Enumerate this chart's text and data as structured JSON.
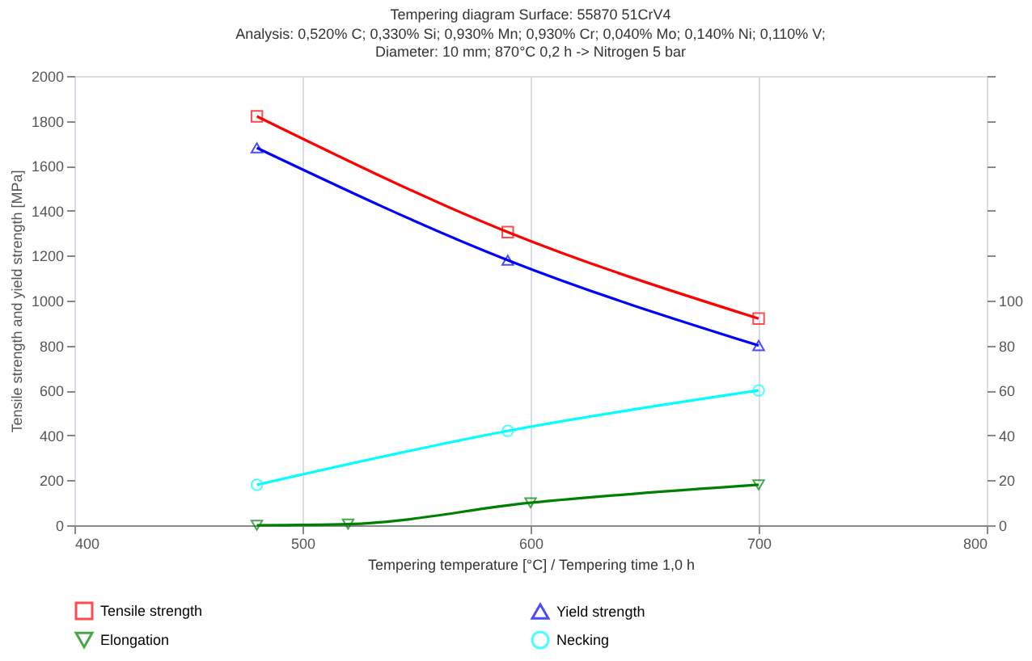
{
  "chart_data": {
    "type": "line",
    "title": "Tempering diagram Surface: 55870 51CrV4",
    "subtitle": "Analysis: 0,520% C; 0,330% Si; 0,930% Mn; 0,930% Cr; 0,040% Mo; 0,140% Ni; 0,110% V;\nDiameter: 10 mm; 870°C 0,2 h -> Nitrogen 5 bar",
    "xlabel": "Tempering temperature [°C] / Tempering time  1,0 h",
    "ylabel": "Tensile strength and yield strength [MPa]",
    "xlim": [
      400,
      800
    ],
    "xticks": [
      400,
      500,
      600,
      700,
      800
    ],
    "ylim": [
      0,
      2000
    ],
    "yticks": [
      0,
      200,
      400,
      600,
      800,
      1000,
      1200,
      1400,
      1600,
      1800,
      2000
    ],
    "y2lim": [
      0,
      200
    ],
    "y2ticks": [
      0,
      20,
      40,
      60,
      80,
      100,
      {
        "value": 120,
        "label": null
      },
      {
        "value": 140,
        "label": null
      },
      {
        "value": 160,
        "label": null
      },
      {
        "value": 180,
        "label": null
      },
      {
        "value": 200,
        "label": null
      }
    ],
    "grid": "x",
    "legend": "bottom",
    "line_style": "solid",
    "series": [
      {
        "name": "Tensile strength",
        "color": "#ff0000",
        "marker": "square",
        "x": [
          480,
          590,
          700
        ],
        "values": [
          1820,
          1305,
          920
        ]
      },
      {
        "name": "Yield strength",
        "color": "#0000ff",
        "marker": "triangle",
        "x": [
          480,
          590,
          700
        ],
        "values": [
          1680,
          1180,
          800
        ]
      },
      {
        "name": "Elongation",
        "color": "#008000",
        "marker": "triangle_down",
        "axis": "y2",
        "x": [
          480,
          520,
          600,
          700
        ],
        "values": [
          0,
          0.5,
          10,
          18
        ]
      },
      {
        "name": "Necking",
        "color": "#00ffff",
        "marker": "circle",
        "axis": "y2",
        "x": [
          480,
          590,
          700
        ],
        "values": [
          18,
          42,
          60
        ]
      }
    ]
  }
}
